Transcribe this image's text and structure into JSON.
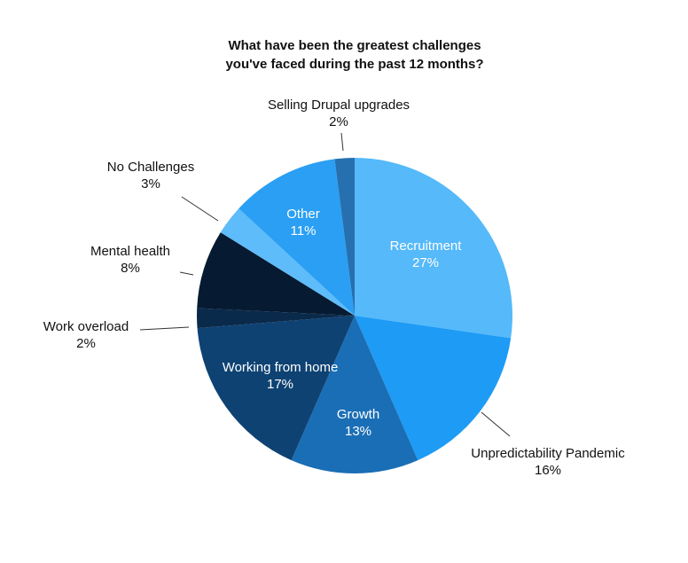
{
  "chart_data": {
    "type": "pie",
    "title": [
      "What have been the greatest challenges",
      "you've faced during the past 12 months?"
    ],
    "categories": [
      "Recruitment",
      "Unpredictability Pandemic",
      "Growth",
      "Working from home",
      "Work overload",
      "Mental health",
      "No Challenges",
      "Other",
      "Selling Drupal upgrades"
    ],
    "values": [
      27,
      16,
      13,
      17,
      2,
      8,
      3,
      11,
      2
    ],
    "value_labels": [
      "27%",
      "16%",
      "13%",
      "17%",
      "2%",
      "8%",
      "3%",
      "11%",
      "2%"
    ],
    "colors": [
      "#55b9fa",
      "#1e9bf5",
      "#1a6eb5",
      "#0e4273",
      "#0a2a4b",
      "#061a31",
      "#5ebcfb",
      "#2a9ff3",
      "#2670b0"
    ]
  }
}
